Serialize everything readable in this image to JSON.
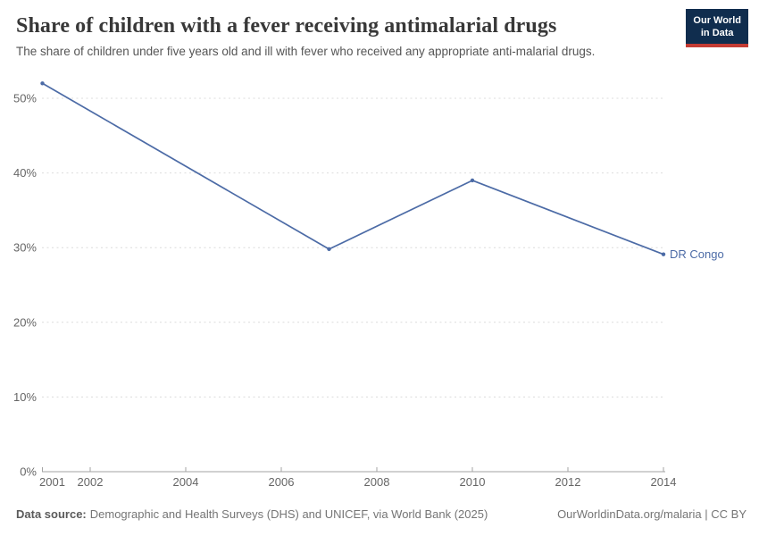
{
  "header": {
    "logo": {
      "line1": "Our World",
      "line2": "in Data"
    }
  },
  "chart_data": {
    "type": "line",
    "title": "Share of children with a fever receiving antimalarial drugs",
    "subtitle": "The share of children under five years old and ill with fever who received any appropriate anti-malarial drugs.",
    "series": [
      {
        "name": "DR Congo",
        "color": "#4C6BA6",
        "points": [
          {
            "x": 2001,
            "y": 52
          },
          {
            "x": 2007,
            "y": 29.8
          },
          {
            "x": 2010,
            "y": 39
          },
          {
            "x": 2014,
            "y": 29.1
          }
        ]
      }
    ],
    "x_ticks": [
      2001,
      2002,
      2004,
      2006,
      2008,
      2010,
      2012,
      2014
    ],
    "y_ticks": [
      0,
      10,
      20,
      30,
      40,
      50
    ],
    "y_tick_suffix": "%",
    "xlim": [
      2001,
      2014
    ],
    "ylim": [
      0,
      50
    ],
    "grid": "horizontal-dashed",
    "legend_position": "end-of-line"
  },
  "footer": {
    "source_label": "Data source:",
    "source_text": "Demographic and Health Surveys (DHS) and UNICEF, via World Bank (2025)",
    "attribution": "OurWorldinData.org/malaria | CC BY"
  },
  "colors": {
    "line": "#4C6BA6",
    "grid": "#dcdcdc",
    "axis": "#a3a3a3",
    "tick_label": "#666666",
    "title": "#383838",
    "subtitle": "#555555",
    "footer": "#757575",
    "logo_bg": "#102D4E",
    "logo_accent": "#C43B33"
  }
}
